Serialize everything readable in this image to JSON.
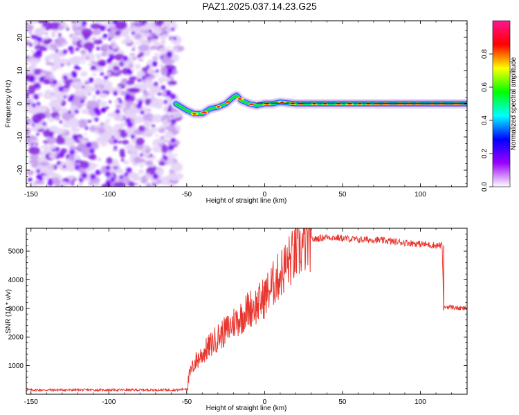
{
  "title": "PAZ1.2025.037.14.23.G25",
  "chart_data": [
    {
      "type": "heatmap",
      "xlabel": "Height of straight line (km)",
      "ylabel": "Frequency (Hz)",
      "xlim": [
        -153,
        130
      ],
      "ylim": [
        -25,
        25
      ],
      "xticks": [
        -150,
        -100,
        -50,
        0,
        50,
        100
      ],
      "yticks": [
        -20,
        -10,
        0,
        10,
        20
      ],
      "colorbar": {
        "label": "Normalized spectral amplitude",
        "ticks": [
          "0.0",
          "0.2",
          "0.4",
          "0.6",
          "0.8"
        ],
        "range": [
          0,
          1
        ],
        "colormap": [
          "#ffffff",
          "#9b00ff",
          "#0000ff",
          "#00ffff",
          "#00ff00",
          "#ffff00",
          "#ff0000",
          "#ff1493"
        ]
      },
      "signal_ridge": {
        "description_free_values": true,
        "x": [
          -57,
          -50,
          -45,
          -40,
          -35,
          -30,
          -25,
          -20,
          -18,
          -15,
          -10,
          -5,
          0,
          5,
          10,
          20,
          30,
          50,
          70,
          100,
          130
        ],
        "y": [
          0,
          -2,
          -3,
          -3,
          -1.5,
          -1,
          0,
          2,
          2.5,
          1,
          0,
          -0.5,
          0,
          0,
          0.5,
          0,
          0,
          0,
          0,
          0,
          0
        ]
      },
      "noise_region_x": [
        -153,
        -57
      ]
    },
    {
      "type": "line",
      "xlabel": "Height of straight line (km)",
      "ylabel": "SNR (10 * v/v)",
      "xlim": [
        -153,
        130
      ],
      "ylim": [
        0,
        5800
      ],
      "xticks": [
        -150,
        -100,
        -50,
        0,
        50,
        100
      ],
      "yticks": [
        1000,
        2000,
        3000,
        4000,
        5000
      ],
      "series": [
        {
          "color": "#e8352e",
          "x": [
            -153,
            -100,
            -55,
            -50,
            -48,
            -45,
            -40,
            -35,
            -30,
            -25,
            -20,
            -15,
            -10,
            -5,
            0,
            5,
            10,
            15,
            20,
            25,
            30,
            35,
            40,
            50,
            60,
            70,
            80,
            90,
            100,
            110,
            114,
            115,
            116,
            120,
            125,
            130
          ],
          "values": [
            150,
            150,
            150,
            200,
            700,
            1100,
            1400,
            1700,
            2000,
            2200,
            2500,
            2700,
            3000,
            3100,
            3400,
            3800,
            4200,
            4600,
            4900,
            5200,
            5400,
            5450,
            5500,
            5450,
            5400,
            5400,
            5350,
            5300,
            5250,
            5200,
            5200,
            3000,
            3050,
            3050,
            3000,
            3000
          ]
        }
      ]
    }
  ]
}
